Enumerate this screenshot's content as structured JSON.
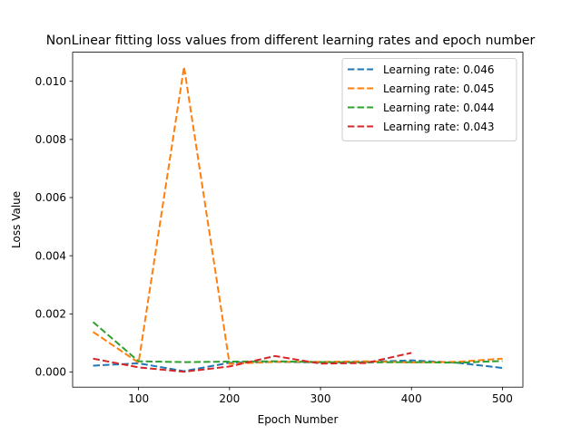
{
  "chart_data": {
    "type": "line",
    "title": "NonLinear fitting loss values from different learning rates and epoch number",
    "xlabel": "Epoch Number",
    "ylabel": "Loss Value",
    "xlim": [
      27.5,
      522.5
    ],
    "ylim": [
      -0.00052,
      0.011
    ],
    "xticks": [
      100,
      200,
      300,
      400,
      500
    ],
    "xtick_labels": [
      "100",
      "200",
      "300",
      "400",
      "500"
    ],
    "yticks": [
      0.0,
      0.002,
      0.004,
      0.006,
      0.008,
      0.01
    ],
    "ytick_labels": [
      "0.000",
      "0.002",
      "0.004",
      "0.006",
      "0.008",
      "0.010"
    ],
    "grid": false,
    "legend_position": "top-right",
    "line_style": "dashed",
    "x": [
      50,
      100,
      150,
      200,
      250,
      300,
      350,
      400,
      450,
      500
    ],
    "series": [
      {
        "name": "Learning rate: 0.046",
        "color": "#1f77b4",
        "values": [
          0.00022,
          0.0003,
          3e-05,
          0.00032,
          0.00035,
          0.00033,
          0.00035,
          0.0004,
          0.00032,
          0.00014
        ]
      },
      {
        "name": "Learning rate: 0.045",
        "color": "#ff7f0e",
        "values": [
          0.00138,
          0.00032,
          0.0105,
          0.00028,
          0.00035,
          0.00035,
          0.00037,
          0.00033,
          0.00035,
          0.00046
        ]
      },
      {
        "name": "Learning rate: 0.044",
        "color": "#2ca02c",
        "values": [
          0.00172,
          0.00037,
          0.00034,
          0.00036,
          0.00037,
          0.00034,
          0.00033,
          0.00034,
          0.00032,
          0.00038
        ]
      },
      {
        "name": "Learning rate: 0.043",
        "color": "#d62728",
        "values": [
          0.00046,
          0.00016,
          1e-05,
          0.00019,
          0.00055,
          0.00029,
          0.00031,
          0.00066,
          null,
          null
        ]
      }
    ]
  }
}
